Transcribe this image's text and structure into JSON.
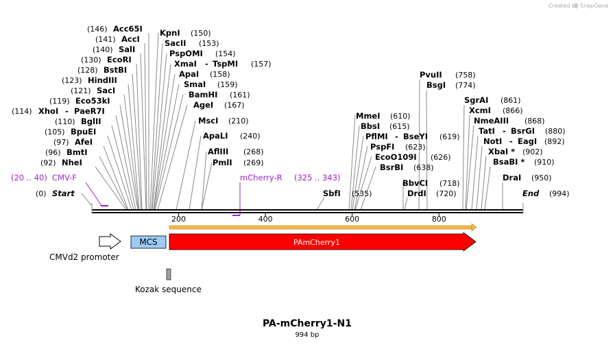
{
  "branding": {
    "created_by": "Created by",
    "app_name": "SnapGene"
  },
  "map": {
    "name": "PA-mCherry1-N1",
    "length_label": "994 bp",
    "length_bp": 994,
    "ticks": [
      {
        "bp": 200,
        "label": "200"
      },
      {
        "bp": 400,
        "label": "400"
      },
      {
        "bp": 600,
        "label": "600"
      },
      {
        "bp": 800,
        "label": "800"
      }
    ],
    "start_label": "Start",
    "start_pos": "(0)",
    "end_label": "End",
    "end_pos": "(994)"
  },
  "enzymes": [
    {
      "name": "Acc65I",
      "pos": "(146)"
    },
    {
      "name": "AccI",
      "pos": "(141)"
    },
    {
      "name": "SalI",
      "pos": "(140)"
    },
    {
      "name": "EcoRI",
      "pos": "(130)"
    },
    {
      "name": "BstBI",
      "pos": "(128)"
    },
    {
      "name": "HindIII",
      "pos": "(123)"
    },
    {
      "name": "SacI",
      "pos": "(121)"
    },
    {
      "name": "Eco53kI",
      "pos": "(119)"
    },
    {
      "name": "XhoI",
      "name2": "PaeR7I",
      "pos": "(114)"
    },
    {
      "name": "BglII",
      "pos": "(110)"
    },
    {
      "name": "BpuEI",
      "pos": "(105)"
    },
    {
      "name": "AfeI",
      "pos": "(97)"
    },
    {
      "name": "BmtI",
      "pos": "(96)"
    },
    {
      "name": "NheI",
      "pos": "(92)"
    },
    {
      "name": "KpnI",
      "pos": "(150)"
    },
    {
      "name": "SacII",
      "pos": "(153)"
    },
    {
      "name": "PspOMI",
      "pos": "(154)"
    },
    {
      "name": "XmaI",
      "name2": "TspMI",
      "pos": "(157)"
    },
    {
      "name": "ApaI",
      "pos": "(158)"
    },
    {
      "name": "SmaI",
      "pos": "(159)"
    },
    {
      "name": "BamHI",
      "pos": "(161)"
    },
    {
      "name": "AgeI",
      "pos": "(167)"
    },
    {
      "name": "MscI",
      "pos": "(210)"
    },
    {
      "name": "ApaLI",
      "pos": "(240)"
    },
    {
      "name": "AflIII",
      "pos": "(268)"
    },
    {
      "name": "PmlI",
      "pos": "(269)"
    },
    {
      "name": "SbfI",
      "pos": "(535)"
    },
    {
      "name": "MmeI",
      "pos": "(610)"
    },
    {
      "name": "BbsI",
      "pos": "(615)"
    },
    {
      "name": "PflMI",
      "name2": "BseYI",
      "pos": "(619)"
    },
    {
      "name": "PspFI",
      "pos": "(623)"
    },
    {
      "name": "EcoO109I",
      "pos": "(626)"
    },
    {
      "name": "BsrBI",
      "pos": "(638)"
    },
    {
      "name": "BbvCI",
      "pos": "(718)"
    },
    {
      "name": "DrdI",
      "pos": "(720)"
    },
    {
      "name": "PvuII",
      "pos": "(758)"
    },
    {
      "name": "BsgI",
      "pos": "(774)"
    },
    {
      "name": "SgrAI",
      "pos": "(861)"
    },
    {
      "name": "XcmI",
      "pos": "(866)"
    },
    {
      "name": "NmeAIII",
      "pos": "(868)"
    },
    {
      "name": "TatI",
      "name2": "BsrGI",
      "pos": "(880)"
    },
    {
      "name": "NotI",
      "name2": "EagI",
      "pos": "(892)"
    },
    {
      "name": "XbaI *",
      "pos": "(902)"
    },
    {
      "name": "BsaBI *",
      "pos": "(910)"
    },
    {
      "name": "DraI",
      "pos": "(950)"
    }
  ],
  "primers": [
    {
      "name": "CMV-F",
      "range": "(20 .. 40)"
    },
    {
      "name": "mCherry-R",
      "range": "(325 .. 343)"
    }
  ],
  "features": {
    "cmv_promoter": "CMVd2 promoter",
    "mcs": "MCS",
    "pamcherry": "PAmCherry1",
    "kozak": "Kozak sequence"
  },
  "colors": {
    "primer": "#9a22c6",
    "orf": "#f7b84a",
    "pamcherry": "#ff0000",
    "mcs": "#9dc9f5",
    "kozak": "#a0a0a0",
    "backbone": "#000000"
  }
}
